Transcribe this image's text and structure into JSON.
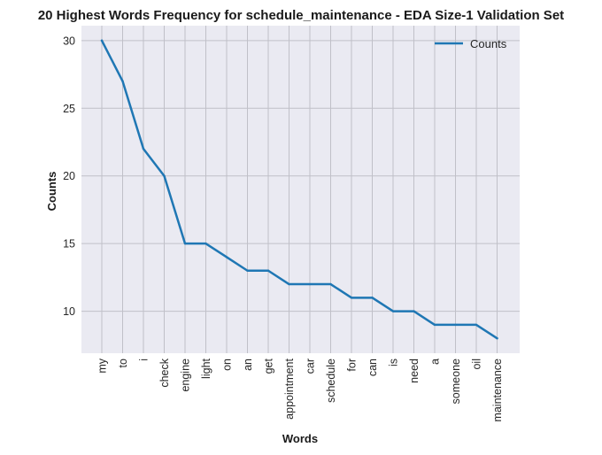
{
  "chart_data": {
    "type": "line",
    "title": "20 Highest Words Frequency for schedule_maintenance - EDA Size-1 Validation Set",
    "xlabel": "Words",
    "ylabel": "Counts",
    "categories": [
      "my",
      "to",
      "i",
      "check",
      "engine",
      "light",
      "on",
      "an",
      "get",
      "appointment",
      "car",
      "schedule",
      "for",
      "can",
      "is",
      "need",
      "a",
      "someone",
      "oil",
      "maintenance"
    ],
    "series": [
      {
        "name": "Counts",
        "values": [
          30,
          27,
          22,
          20,
          15,
          15,
          14,
          13,
          13,
          12,
          12,
          12,
          11,
          11,
          10,
          10,
          9,
          9,
          9,
          8
        ],
        "color": "#1f77b4"
      }
    ],
    "ylim": [
      6.9,
      31.1
    ],
    "yticks": [
      10,
      15,
      20,
      25,
      30
    ],
    "grid": true,
    "legend_position": "top-right",
    "background": "#eaeaf2",
    "grid_color": "#c0c0c8"
  }
}
